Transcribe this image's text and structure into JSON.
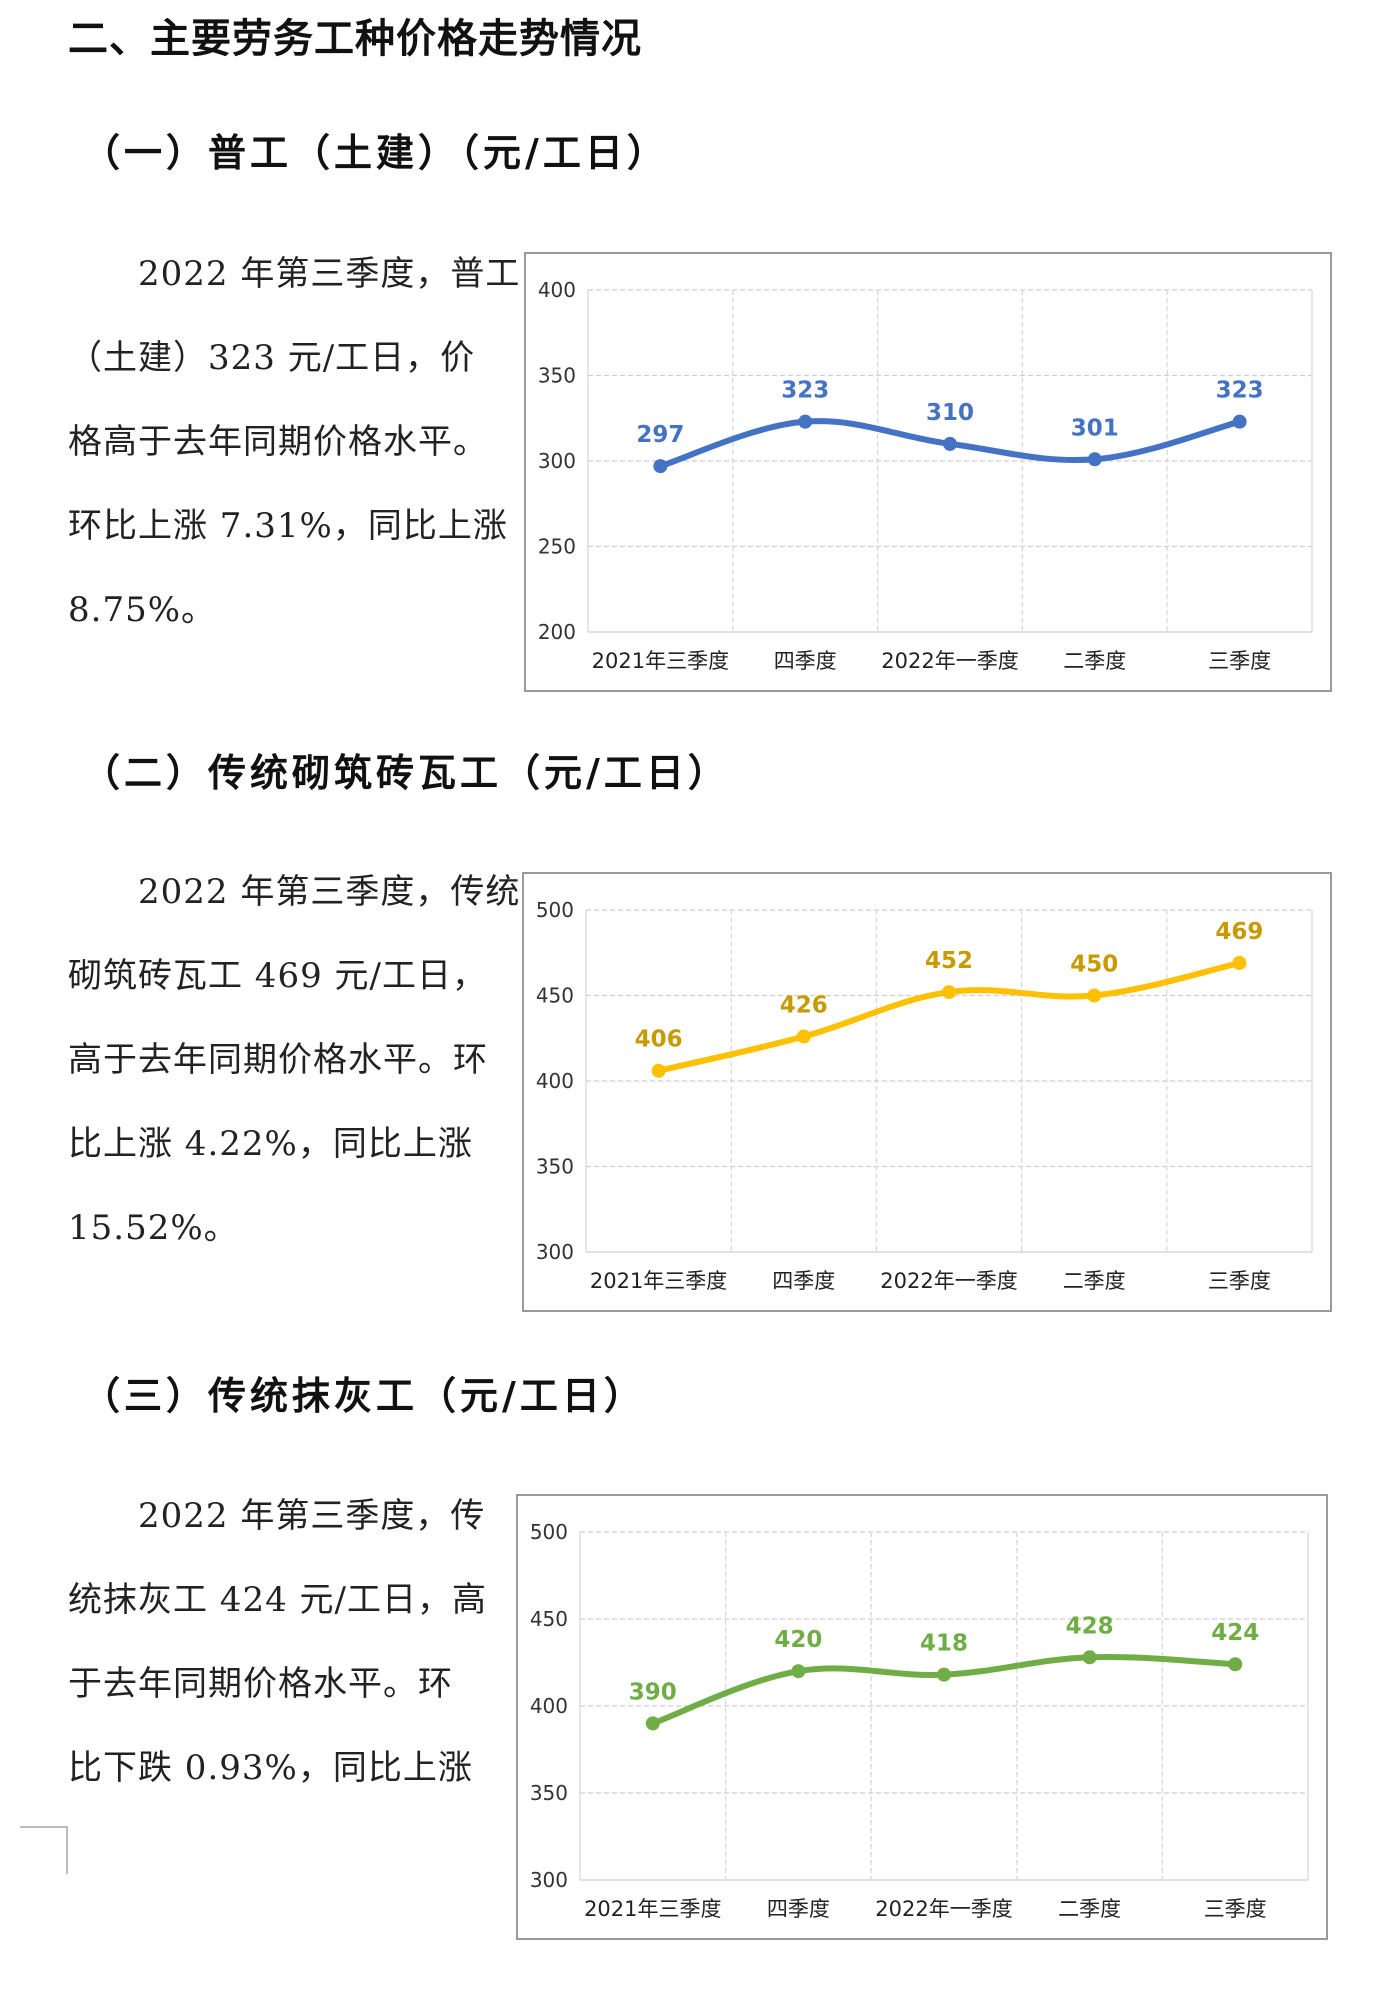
{
  "page_title": "二、主要劳务工种价格走势情况",
  "sections": [
    {
      "heading": "（一）普工（土建）（元/工日）",
      "paragraph_lines": [
        "　　2022 年第三季度，普工",
        "（土建）323 元/工日，价",
        "格高于去年同期价格水平。",
        "环比上涨 7.31%，同比上涨",
        "8.75%。"
      ],
      "chart_data": {
        "type": "line",
        "categories": [
          "2021年三季度",
          "四季度",
          "2022年一季度",
          "二季度",
          "三季度"
        ],
        "values": [
          297,
          323,
          310,
          301,
          323
        ],
        "data_labels": [
          "297",
          "323",
          "310",
          "301",
          "323"
        ],
        "ylim": [
          200,
          400
        ],
        "yticks": [
          200,
          250,
          300,
          350,
          400
        ],
        "ytick_labels": [
          "200",
          "250",
          "300",
          "350",
          "400"
        ],
        "color": "#4472C4",
        "smooth": true,
        "grid": "dashed"
      }
    },
    {
      "heading": "（二）传统砌筑砖瓦工（元/工日）",
      "paragraph_lines": [
        "　　2022 年第三季度，传统",
        "砌筑砖瓦工 469 元/工日，",
        "高于去年同期价格水平。环",
        "比上涨 4.22%，同比上涨",
        "15.52%。"
      ],
      "chart_data": {
        "type": "line",
        "categories": [
          "2021年三季度",
          "四季度",
          "2022年一季度",
          "二季度",
          "三季度"
        ],
        "values": [
          406,
          426,
          452,
          450,
          469
        ],
        "data_labels": [
          "406",
          "426",
          "452",
          "450",
          "469"
        ],
        "ylim": [
          300,
          500
        ],
        "yticks": [
          300,
          350,
          400,
          450,
          500
        ],
        "ytick_labels": [
          "300",
          "350",
          "400",
          "450",
          "500"
        ],
        "color": "#FFC000",
        "label_color": "#C89A00",
        "smooth": true,
        "grid": "dashed"
      }
    },
    {
      "heading": "（三）传统抹灰工（元/工日）",
      "paragraph_lines": [
        "　　2022 年第三季度，传",
        "统抹灰工 424 元/工日，高",
        "于去年同期价格水平。环",
        "比下跌 0.93%，同比上涨"
      ],
      "chart_data": {
        "type": "line",
        "categories": [
          "2021年三季度",
          "四季度",
          "2022年一季度",
          "二季度",
          "三季度"
        ],
        "values": [
          390,
          420,
          418,
          428,
          424
        ],
        "data_labels": [
          "390",
          "420",
          "418",
          "428",
          "424"
        ],
        "ylim": [
          300,
          500
        ],
        "yticks": [
          300,
          350,
          400,
          450,
          500
        ],
        "ytick_labels": [
          "300",
          "350",
          "400",
          "450",
          "500"
        ],
        "color": "#70AD47",
        "smooth": true,
        "grid": "dashed"
      }
    }
  ]
}
